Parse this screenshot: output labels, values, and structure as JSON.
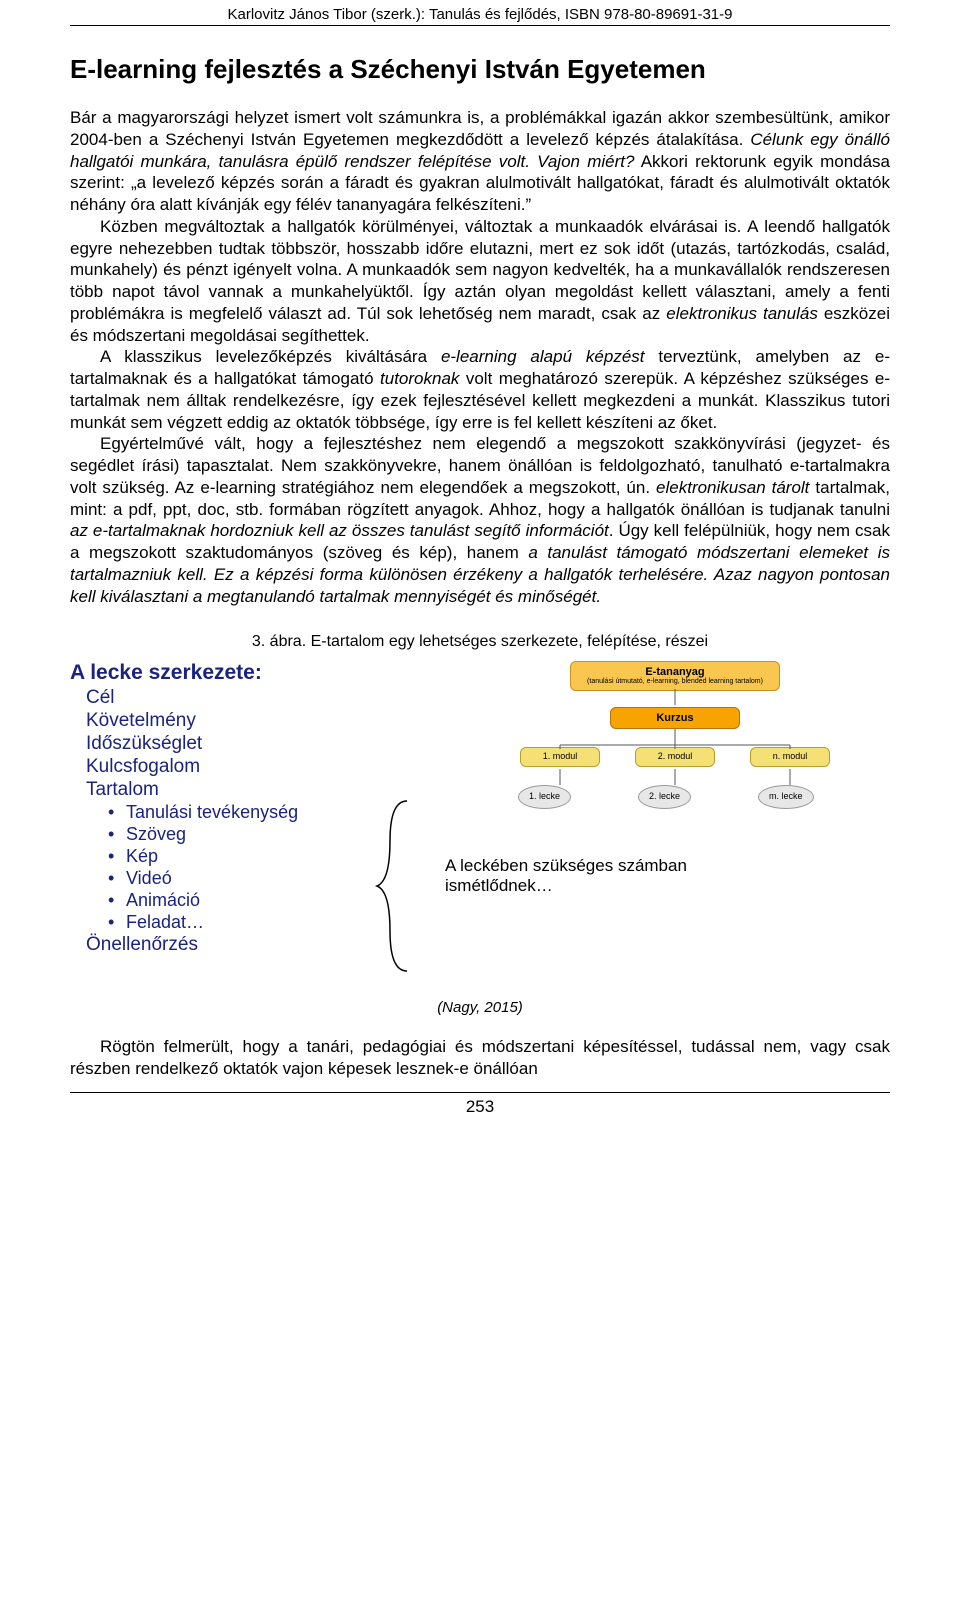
{
  "header": "Karlovitz János Tibor (szerk.): Tanulás és fejlődés, ISBN 978-80-89691-31-9",
  "title": "E-learning fejlesztés a Széchenyi István Egyetemen",
  "paras": [
    "Bár a magyarországi helyzet ismert volt számunkra is, a problémákkal igazán akkor szembesültünk, amikor 2004-ben a Széchenyi István Egyetemen megkezdődött a levelező képzés átalakítása.",
    "<em>Célunk egy önálló hallgatói munkára, tanulásra épülő rendszer felépítése volt. Vajon miért?</em> Akkori rektorunk egyik mondása szerint: „a levelező képzés során a fáradt és gyakran alulmotivált hallgatókat, fáradt és alulmotivált oktatók néhány óra alatt kívánják egy félév tananyagára felkészíteni.”",
    "Közben megváltoztak a hallgatók körülményei, változtak a munkaadók elvárásai is. A leendő hallgatók egyre nehezebben tudtak többször, hosszabb időre elutazni, mert ez sok időt (utazás, tartózkodás, család, munkahely) és pénzt igényelt volna. A munkaadók sem nagyon kedvelték, ha a munkavállalók rendszeresen több napot távol vannak a munkahelyüktől. Így aztán olyan megoldást kellett választani, amely a fenti problémákra is megfelelő választ ad. Túl sok lehetőség nem maradt, csak az <em>elektronikus tanulás</em> eszközei és módszertani megoldásai segíthettek.",
    "A klasszikus levelezőképzés kiváltására <em>e-learning alapú képzést</em> terveztünk, amelyben az e-tartalmaknak és a hallgatókat támogató <em>tutoroknak</em> volt meghatározó szerepük. A képzéshez szükséges e-tartalmak nem álltak rendelkezésre, így ezek fejlesztésével kellett megkezdeni a munkát. Klasszikus tutori munkát sem végzett eddig az oktatók többsége, így erre is fel kellett készíteni az őket.",
    "Egyértelművé vált, hogy a fejlesztéshez nem elegendő a megszokott szakkönyvírási (jegyzet- és segédlet írási) tapasztalat. Nem szakkönyvekre, hanem önállóan is feldolgozható, tanulható e-tartalmakra volt szükség. Az e-learning stratégiához nem elegendőek a megszokott, ún. <em>elektronikusan tárolt</em> tartalmak, mint: a pdf, ppt, doc, stb. formában rögzített anyagok. Ahhoz, hogy a hallgatók önállóan is tudjanak tanulni <em>az e-tartalmaknak hordozniuk kell az összes tanulást segítő információt</em>. Úgy kell felépülniük, hogy nem csak a megszokott szaktudományos (szöveg és kép), hanem <em>a tanulást támogató módszertani elemeket is tartalmazniuk kell. Ez a képzési forma különösen érzékeny a hallgatók terhelésére. Azaz nagyon pontosan kell kiválasztani a megtanulandó tartalmak mennyiségét és minőségét.</em>"
  ],
  "fig_caption": "3. ábra. E-tartalom egy lehetséges szerkezete, felépítése, részei",
  "fig_source": "(Nagy, 2015)",
  "lecture": {
    "title": "A lecke szerkezete:",
    "items": [
      "Cél",
      "Követelmény",
      "Időszükséglet",
      "Kulcsfogalom",
      "Tartalom"
    ],
    "subs": [
      "Tanulási tevékenység",
      "Szöveg",
      "Kép",
      "Videó",
      "Animáció",
      "Feladat…"
    ],
    "footer": "Önellenőrzés"
  },
  "diagram": {
    "top": {
      "title": "E-tananyag",
      "sub": "(tanulási útmutató, e-learning, blended learning tartalom)"
    },
    "course": "Kurzus",
    "modules": [
      "1. modul",
      "2. modul",
      "n. modul"
    ],
    "lessons": [
      "1. lecke",
      "2. lecke",
      "m. lecke"
    ],
    "right_label": "A leckében szükséges számban ismétlődnek…",
    "colors": {
      "top_bg": "#f9c74f",
      "top_border": "#c7901f",
      "course_bg": "#f7a400",
      "course_border": "#b87200",
      "mod_bg": "#f5e076",
      "mod_border": "#b59f2a",
      "lesson_bg": "#e7e7e7",
      "lesson_border": "#9a9a9a",
      "brace": "#000000",
      "label_color": "#1a237e"
    }
  },
  "closing_para": "Rögtön felmerült, hogy a tanári, pedagógiai és módszertani képesítéssel, tudással nem, vagy csak részben rendelkező oktatók vajon képesek lesznek-e önállóan",
  "page_number": "253"
}
